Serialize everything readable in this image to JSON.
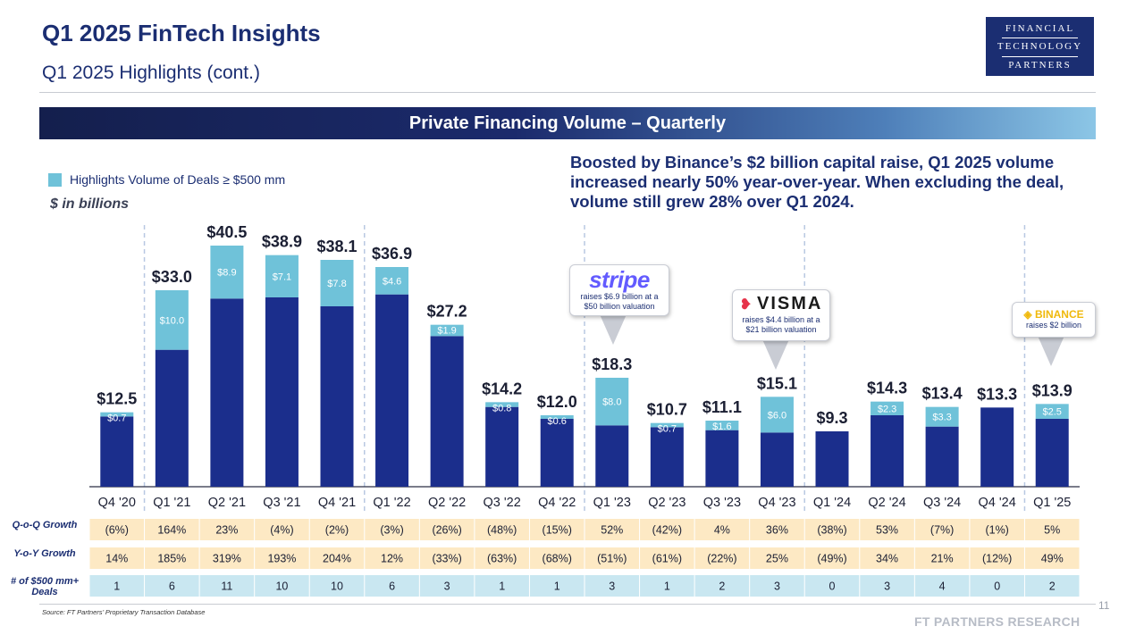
{
  "header": {
    "title": "Q1 2025 FinTech Insights",
    "subtitle": "Q1 2025 Highlights (cont.)",
    "logo_lines": [
      "FINANCIAL",
      "TECHNOLOGY",
      "PARTNERS"
    ]
  },
  "banner": {
    "title": "Private Financing Volume – Quarterly"
  },
  "legend": {
    "label": "Highlights Volume of Deals ≥ $500 mm",
    "units": "$ in billions"
  },
  "headline": "Boosted by Binance’s $2 billion capital raise, Q1 2025 volume increased nearly 50% year-over-year. When excluding the deal, volume still grew 28% over Q1 2024.",
  "colors": {
    "base": "#1b2e8c",
    "highlight": "#6fc2d9",
    "table_orange": "#fde9c4",
    "table_blue": "#c9e7f1",
    "divider": "#b8c8e2"
  },
  "callouts": [
    {
      "brand": "stripe",
      "text": "raises $6.9 billion at a $50 billion valuation"
    },
    {
      "brand": "VISMA",
      "text": "raises $4.4 billion at a $21 billion valuation"
    },
    {
      "brand": "BINANCE",
      "text": "raises $2 billion"
    }
  ],
  "chart_data": {
    "type": "bar",
    "stacked": true,
    "categories": [
      "Q4 '20",
      "Q1 '21",
      "Q2 '21",
      "Q3 '21",
      "Q4 '21",
      "Q1 '22",
      "Q2 '22",
      "Q3 '22",
      "Q4 '22",
      "Q1 '23",
      "Q2 '23",
      "Q3 '23",
      "Q4 '23",
      "Q1 '24",
      "Q2 '24",
      "Q3 '24",
      "Q4 '24",
      "Q1 '25"
    ],
    "totals": [
      12.5,
      33.0,
      40.5,
      38.9,
      38.1,
      36.9,
      27.2,
      14.2,
      12.0,
      18.3,
      10.7,
      11.1,
      15.1,
      9.3,
      14.3,
      13.4,
      13.3,
      13.9
    ],
    "total_labels": [
      "$12.5",
      "$33.0",
      "$40.5",
      "$38.9",
      "$38.1",
      "$36.9",
      "$27.2",
      "$14.2",
      "$12.0",
      "$18.3",
      "$10.7",
      "$11.1",
      "$15.1",
      "$9.3",
      "$14.3",
      "$13.4",
      "$13.3",
      "$13.9"
    ],
    "series": [
      {
        "name": "Highlights Volume of Deals ≥ $500 mm",
        "values": [
          0.7,
          10.0,
          8.9,
          7.1,
          7.8,
          4.6,
          1.9,
          0.8,
          0.6,
          8.0,
          0.7,
          1.6,
          6.0,
          0,
          2.3,
          3.3,
          0,
          2.5
        ]
      }
    ],
    "highlight_labels": [
      "$0.7",
      "$10.0",
      "$8.9",
      "$7.1",
      "$7.8",
      "$4.6",
      "$1.9",
      "$0.8",
      "$0.6",
      "$8.0",
      "$0.7",
      "$1.6",
      "$6.0",
      "",
      "$2.3",
      "$3.3",
      "",
      "$2.5"
    ],
    "ylim": [
      0,
      45
    ],
    "year_dividers_after": [
      "Q4 '20",
      "Q4 '21",
      "Q4 '22",
      "Q4 '23",
      "Q4 '24"
    ]
  },
  "table": {
    "rows": [
      {
        "label": "Q-o-Q Growth",
        "style": "orange",
        "values": [
          "(6%)",
          "164%",
          "23%",
          "(4%)",
          "(2%)",
          "(3%)",
          "(26%)",
          "(48%)",
          "(15%)",
          "52%",
          "(42%)",
          "4%",
          "36%",
          "(38%)",
          "53%",
          "(7%)",
          "(1%)",
          "5%"
        ]
      },
      {
        "label": "Y-o-Y Growth",
        "style": "orange",
        "values": [
          "14%",
          "185%",
          "319%",
          "193%",
          "204%",
          "12%",
          "(33%)",
          "(63%)",
          "(68%)",
          "(51%)",
          "(61%)",
          "(22%)",
          "25%",
          "(49%)",
          "34%",
          "21%",
          "(12%)",
          "49%"
        ]
      },
      {
        "label": "# of $500 mm+ Deals",
        "style": "blue",
        "values": [
          "1",
          "6",
          "11",
          "10",
          "10",
          "6",
          "3",
          "1",
          "1",
          "3",
          "1",
          "2",
          "3",
          "0",
          "3",
          "4",
          "0",
          "2"
        ]
      }
    ]
  },
  "footer": {
    "source": "Source: FT Partners’ Proprietary Transaction Database",
    "page": "11",
    "brand": "FT PARTNERS RESEARCH"
  }
}
